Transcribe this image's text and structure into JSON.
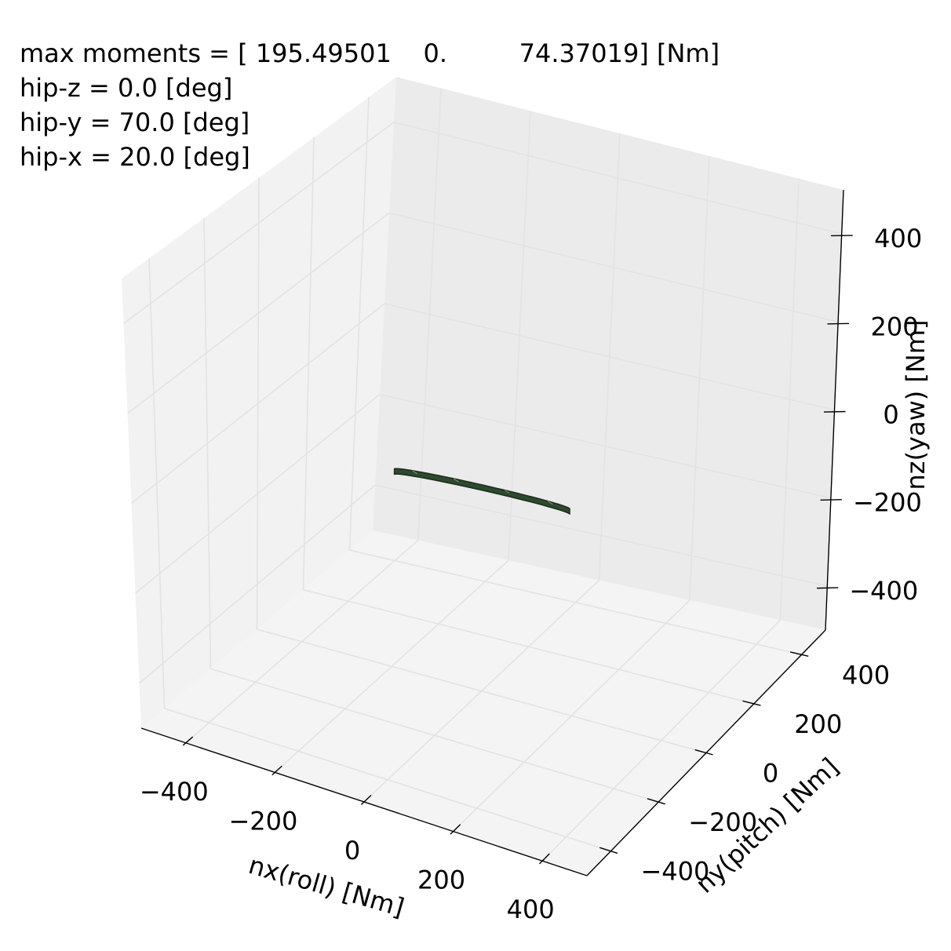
{
  "info_lines": [
    "max moments = [ 195.49501    0.         74.37019] [Nm]",
    "hip-z = 0.0 [deg]",
    "hip-y = 70.0 [deg]",
    "hip-x = 20.0 [deg]"
  ],
  "chart_data": {
    "type": "surface3d",
    "title": "",
    "xlabel": "nx(roll) [Nm]",
    "ylabel": "ny(pitch) [Nm]",
    "zlabel": "nz(yaw) [Nm]",
    "xlim": [
      -500,
      500
    ],
    "ylim": [
      -500,
      500
    ],
    "zlim": [
      -500,
      500
    ],
    "xticks": [
      "−400",
      "−200",
      "0",
      "200",
      "400"
    ],
    "yticks": [
      "−400",
      "−200",
      "0",
      "200",
      "400"
    ],
    "zticks": [
      "−400",
      "−200",
      "0",
      "200",
      "400"
    ],
    "grid": true,
    "max_moments": [
      195.49501,
      0.0,
      74.37019
    ],
    "surface_color": "#2e4a2e",
    "pane_colors": {
      "left": "#f2f2f2",
      "back": "#ebebeb",
      "floor": "#f4f4f4"
    }
  }
}
